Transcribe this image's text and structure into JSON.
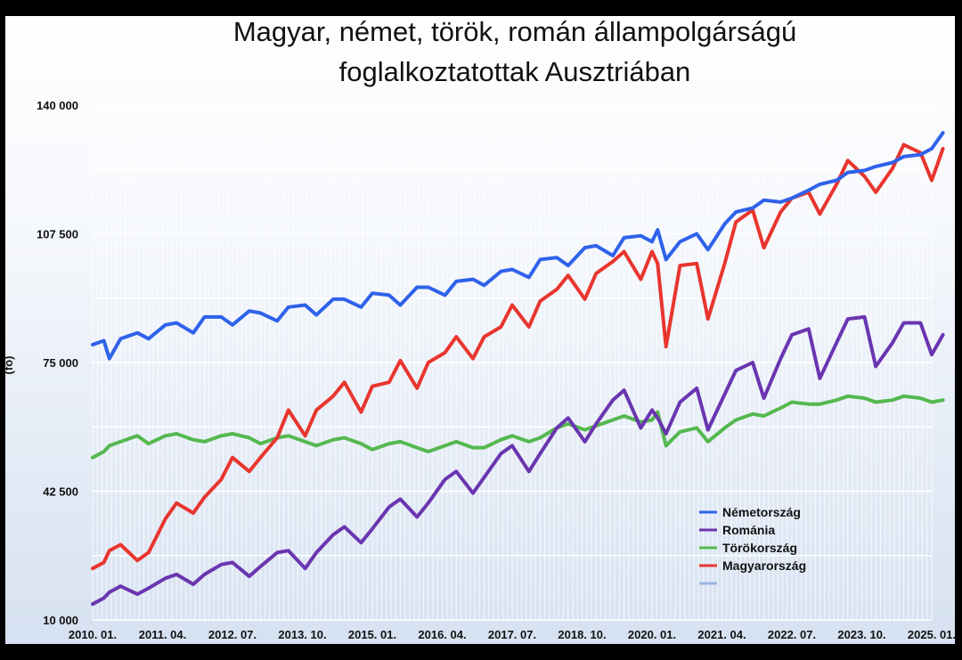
{
  "chart_data": {
    "type": "line",
    "title": "Magyar, német, török, román állampolgárságú foglalkoztatottak Ausztriában",
    "title_lines": [
      "Magyar, német, török, román állampolgárságú",
      "foglalkoztatottak Ausztriában"
    ],
    "ylabel": "(fő)",
    "xlabel": "",
    "ylim": [
      10000,
      140000
    ],
    "y_ticks": [
      10000,
      42500,
      75000,
      107500,
      140000
    ],
    "y_tick_labels": [
      "10 000",
      "42 500",
      "75 000",
      "107 500",
      "140 000"
    ],
    "x_range": [
      2010.0,
      2025.0
    ],
    "x_tick_values": [
      2010.0,
      2011.25,
      2012.5,
      2013.75,
      2015.0,
      2016.25,
      2017.5,
      2018.75,
      2020.0,
      2021.25,
      2022.5,
      2023.75,
      2025.0
    ],
    "x_tick_labels": [
      "2010. 01.",
      "2011. 04.",
      "2012. 07.",
      "2013. 10.",
      "2015. 01.",
      "2016. 04.",
      "2017. 07.",
      "2018. 10.",
      "2020. 01.",
      "2021. 04.",
      "2022. 07.",
      "2023. 10.",
      "2025. 01."
    ],
    "grid": true,
    "legend_position": "bottom-right",
    "series": [
      {
        "name": "Németország",
        "color": "#2f62ea",
        "x": [
          2010.0,
          2010.2,
          2010.3,
          2010.5,
          2010.8,
          2011.0,
          2011.3,
          2011.5,
          2011.8,
          2012.0,
          2012.3,
          2012.5,
          2012.8,
          2013.0,
          2013.3,
          2013.5,
          2013.8,
          2014.0,
          2014.3,
          2014.5,
          2014.8,
          2015.0,
          2015.3,
          2015.5,
          2015.8,
          2016.0,
          2016.3,
          2016.5,
          2016.8,
          2017.0,
          2017.3,
          2017.5,
          2017.8,
          2018.0,
          2018.3,
          2018.5,
          2018.8,
          2019.0,
          2019.3,
          2019.5,
          2019.8,
          2020.0,
          2020.1,
          2020.25,
          2020.5,
          2020.8,
          2021.0,
          2021.3,
          2021.5,
          2021.8,
          2022.0,
          2022.3,
          2022.5,
          2022.8,
          2023.0,
          2023.3,
          2023.5,
          2023.8,
          2024.0,
          2024.3,
          2024.5,
          2024.8,
          2025.0,
          2025.2
        ],
        "values": [
          79500,
          80500,
          76000,
          81000,
          82500,
          81000,
          84500,
          85000,
          82500,
          86500,
          86500,
          84500,
          88000,
          87500,
          85500,
          89000,
          89500,
          87000,
          91000,
          91000,
          89000,
          92500,
          92000,
          89500,
          94000,
          94000,
          92000,
          95500,
          96000,
          94500,
          98000,
          98500,
          96500,
          101000,
          101500,
          99500,
          104000,
          104500,
          102000,
          106500,
          107000,
          105500,
          108500,
          101000,
          105500,
          107500,
          103500,
          110000,
          113000,
          114000,
          116000,
          115500,
          116500,
          118500,
          120000,
          121000,
          123000,
          123500,
          124500,
          125500,
          127000,
          127500,
          129000,
          133000
        ]
      },
      {
        "name": "Románia",
        "color": "#6a35b0",
        "x": [
          2010.0,
          2010.2,
          2010.3,
          2010.5,
          2010.8,
          2011.0,
          2011.3,
          2011.5,
          2011.8,
          2012.0,
          2012.3,
          2012.5,
          2012.8,
          2013.0,
          2013.3,
          2013.5,
          2013.8,
          2014.0,
          2014.3,
          2014.5,
          2014.8,
          2015.0,
          2015.3,
          2015.5,
          2015.8,
          2016.0,
          2016.3,
          2016.5,
          2016.8,
          2017.0,
          2017.3,
          2017.5,
          2017.8,
          2018.0,
          2018.3,
          2018.5,
          2018.8,
          2019.0,
          2019.3,
          2019.5,
          2019.8,
          2020.0,
          2020.1,
          2020.25,
          2020.5,
          2020.8,
          2021.0,
          2021.3,
          2021.5,
          2021.8,
          2022.0,
          2022.3,
          2022.5,
          2022.8,
          2023.0,
          2023.3,
          2023.5,
          2023.8,
          2024.0,
          2024.3,
          2024.5,
          2024.8,
          2025.0,
          2025.2
        ],
        "values": [
          14000,
          15500,
          17000,
          18500,
          16500,
          18000,
          20500,
          21500,
          19000,
          21500,
          24000,
          24500,
          21000,
          23500,
          27000,
          27500,
          23000,
          27000,
          31500,
          33500,
          29500,
          33000,
          38500,
          40500,
          36000,
          39500,
          45500,
          47500,
          42000,
          46000,
          52000,
          54000,
          47500,
          52000,
          58500,
          61000,
          55000,
          59500,
          65500,
          68000,
          58500,
          63000,
          61000,
          57000,
          65000,
          68500,
          58000,
          67000,
          73000,
          75000,
          66000,
          76000,
          82000,
          83500,
          71000,
          80000,
          86000,
          86500,
          74000,
          80000,
          85000,
          85000,
          77000,
          82000
        ]
      },
      {
        "name": "Törökország",
        "color": "#55b84f",
        "x": [
          2010.0,
          2010.2,
          2010.3,
          2010.5,
          2010.8,
          2011.0,
          2011.3,
          2011.5,
          2011.8,
          2012.0,
          2012.3,
          2012.5,
          2012.8,
          2013.0,
          2013.3,
          2013.5,
          2013.8,
          2014.0,
          2014.3,
          2014.5,
          2014.8,
          2015.0,
          2015.3,
          2015.5,
          2015.8,
          2016.0,
          2016.3,
          2016.5,
          2016.8,
          2017.0,
          2017.3,
          2017.5,
          2017.8,
          2018.0,
          2018.3,
          2018.5,
          2018.8,
          2019.0,
          2019.3,
          2019.5,
          2019.8,
          2020.0,
          2020.1,
          2020.25,
          2020.5,
          2020.8,
          2021.0,
          2021.3,
          2021.5,
          2021.8,
          2022.0,
          2022.3,
          2022.5,
          2022.8,
          2023.0,
          2023.3,
          2023.5,
          2023.8,
          2024.0,
          2024.3,
          2024.5,
          2024.8,
          2025.0,
          2025.2
        ],
        "values": [
          51000,
          52500,
          54000,
          55000,
          56500,
          54500,
          56500,
          57000,
          55500,
          55000,
          56500,
          57000,
          56000,
          54500,
          56000,
          56500,
          55000,
          54000,
          55500,
          56000,
          54500,
          53000,
          54500,
          55000,
          53500,
          52500,
          54000,
          55000,
          53500,
          53500,
          55500,
          56500,
          55000,
          56000,
          58500,
          59500,
          58000,
          59000,
          60500,
          61500,
          60000,
          60500,
          62500,
          54000,
          57500,
          58500,
          55000,
          58500,
          60500,
          62000,
          61500,
          63500,
          65000,
          64500,
          64500,
          65500,
          66500,
          66000,
          65000,
          65500,
          66500,
          66000,
          65000,
          65500
        ]
      },
      {
        "name": "Magyarország",
        "color": "#e8352e",
        "x": [
          2010.0,
          2010.2,
          2010.3,
          2010.5,
          2010.8,
          2011.0,
          2011.3,
          2011.5,
          2011.8,
          2012.0,
          2012.3,
          2012.5,
          2012.8,
          2013.0,
          2013.3,
          2013.5,
          2013.8,
          2014.0,
          2014.3,
          2014.5,
          2014.8,
          2015.0,
          2015.3,
          2015.5,
          2015.8,
          2016.0,
          2016.3,
          2016.5,
          2016.8,
          2017.0,
          2017.3,
          2017.5,
          2017.8,
          2018.0,
          2018.3,
          2018.5,
          2018.8,
          2019.0,
          2019.3,
          2019.5,
          2019.8,
          2020.0,
          2020.1,
          2020.25,
          2020.5,
          2020.8,
          2021.0,
          2021.3,
          2021.5,
          2021.8,
          2022.0,
          2022.3,
          2022.5,
          2022.8,
          2023.0,
          2023.3,
          2023.5,
          2023.8,
          2024.0,
          2024.3,
          2024.5,
          2024.8,
          2025.0,
          2025.2
        ],
        "values": [
          23000,
          24500,
          27500,
          29000,
          25000,
          27000,
          35500,
          39500,
          37000,
          41000,
          45500,
          51000,
          47500,
          51000,
          56000,
          63000,
          56500,
          63000,
          66500,
          70000,
          62500,
          69000,
          70000,
          75500,
          68500,
          75000,
          77500,
          81500,
          76000,
          81500,
          84000,
          89500,
          84000,
          90500,
          93500,
          97000,
          91000,
          97500,
          100500,
          103000,
          96000,
          103000,
          100000,
          79000,
          99500,
          100000,
          86000,
          100000,
          110500,
          113500,
          104000,
          113000,
          116500,
          118000,
          112500,
          120000,
          126000,
          122000,
          118000,
          124000,
          130000,
          128000,
          121000,
          129000
        ]
      }
    ]
  },
  "legend": {
    "items": [
      {
        "label": "Németország",
        "color": "#2f62ea"
      },
      {
        "label": "Románia",
        "color": "#6a35b0"
      },
      {
        "label": "Törökország",
        "color": "#55b84f"
      },
      {
        "label": "Magyarország",
        "color": "#e8352e"
      },
      {
        "label": "",
        "color": "#9bb5df"
      }
    ]
  }
}
